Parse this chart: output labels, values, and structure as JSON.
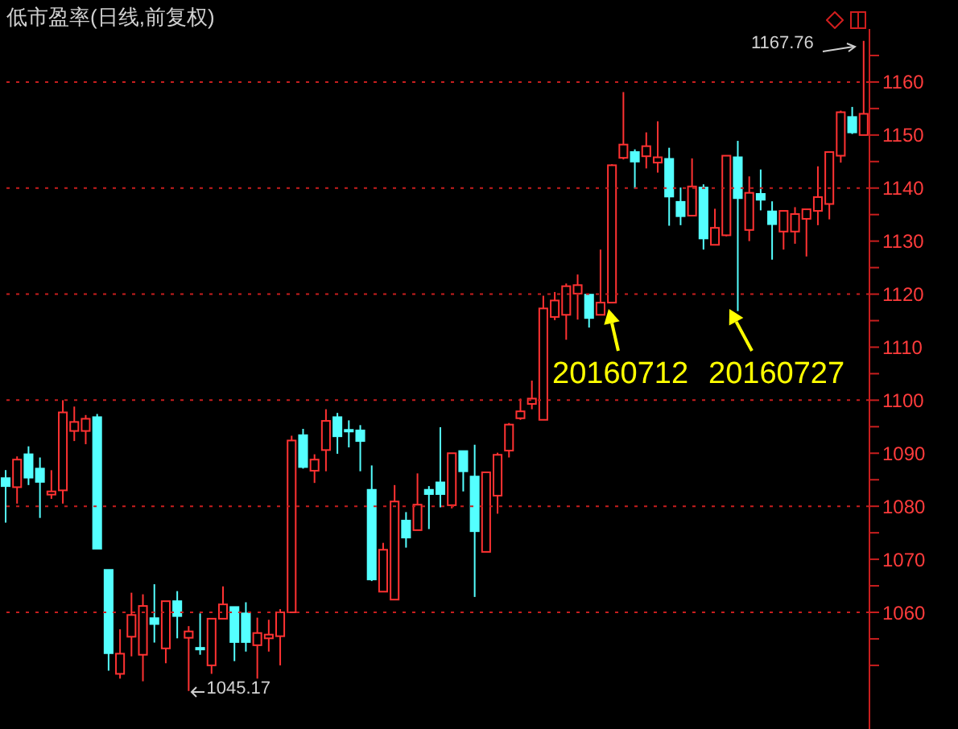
{
  "chart_data": {
    "type": "candlestick",
    "title": "低市盈率(日线,前复权)",
    "categories": [
      null,
      null,
      null,
      null,
      null,
      null,
      null,
      null,
      null,
      null,
      null,
      null,
      null,
      null,
      null,
      null,
      null,
      null,
      null,
      null,
      null,
      null,
      null,
      null,
      null,
      null,
      null,
      null,
      null,
      null,
      null,
      null,
      null,
      null,
      null,
      null,
      null,
      null,
      null,
      null,
      null,
      null,
      null,
      null,
      null,
      null,
      null,
      null,
      null,
      null,
      null,
      null,
      null,
      null,
      null,
      null,
      null,
      null,
      null,
      null,
      null,
      null,
      null,
      null,
      null,
      null,
      null,
      null,
      null,
      null,
      null,
      null,
      null,
      null,
      null,
      null
    ],
    "ohlc": [
      [
        1085.3,
        1086.8,
        1076.9,
        1083.8
      ],
      [
        1083.6,
        1089.4,
        1080.5,
        1088.8
      ],
      [
        1089.8,
        1091.3,
        1084.0,
        1085.4
      ],
      [
        1087.1,
        1089.2,
        1077.8,
        1084.6
      ],
      [
        1082.2,
        1086.8,
        1081.4,
        1082.8
      ],
      [
        1083.0,
        1100.0,
        1080.5,
        1097.7
      ],
      [
        1094.2,
        1098.8,
        1092.3,
        1095.9
      ],
      [
        1094.2,
        1097.2,
        1091.7,
        1096.5
      ],
      [
        1096.8,
        1097.4,
        1072.0,
        1072.0
      ],
      [
        1068.0,
        1068.0,
        1049.0,
        1052.3
      ],
      [
        1048.4,
        1056.8,
        1047.5,
        1052.2
      ],
      [
        1055.4,
        1063.7,
        1051.7,
        1059.5
      ],
      [
        1052.0,
        1063.4,
        1047.0,
        1061.2
      ],
      [
        1058.9,
        1065.3,
        1054.3,
        1057.8
      ],
      [
        1053.2,
        1062.1,
        1050.4,
        1062.1
      ],
      [
        1062.1,
        1064.0,
        1055.1,
        1059.3
      ],
      [
        1055.2,
        1057.4,
        1045.17,
        1056.4
      ],
      [
        1053.3,
        1059.8,
        1052.0,
        1053.0
      ],
      [
        1050.0,
        1058.8,
        1048.4,
        1058.8
      ],
      [
        1058.8,
        1064.9,
        1058.8,
        1061.5
      ],
      [
        1061.0,
        1061.0,
        1050.8,
        1054.4
      ],
      [
        1059.8,
        1061.9,
        1052.6,
        1054.4
      ],
      [
        1053.8,
        1059.0,
        1047.5,
        1056.1
      ],
      [
        1055.1,
        1058.6,
        1052.6,
        1055.8
      ],
      [
        1055.5,
        1060.6,
        1050.0,
        1060.0
      ],
      [
        1060.0,
        1093.3,
        1060.0,
        1092.4
      ],
      [
        1093.4,
        1094.6,
        1087.1,
        1087.4
      ],
      [
        1086.7,
        1089.8,
        1084.4,
        1088.8
      ],
      [
        1090.6,
        1098.3,
        1086.6,
        1096.1
      ],
      [
        1096.8,
        1097.6,
        1089.9,
        1093.2
      ],
      [
        1094.4,
        1096.2,
        1091.1,
        1094.2
      ],
      [
        1094.3,
        1095.3,
        1086.6,
        1092.3
      ],
      [
        1083.1,
        1087.7,
        1065.9,
        1066.2
      ],
      [
        1063.9,
        1073.1,
        1063.9,
        1071.8
      ],
      [
        1062.4,
        1084.0,
        1062.4,
        1080.9
      ],
      [
        1077.3,
        1078.9,
        1072.2,
        1074.1
      ],
      [
        1075.5,
        1086.2,
        1075.5,
        1080.3
      ],
      [
        1083.1,
        1083.8,
        1075.7,
        1082.3
      ],
      [
        1084.5,
        1094.9,
        1079.8,
        1082.3
      ],
      [
        1080.2,
        1090.0,
        1079.6,
        1090.0
      ],
      [
        1090.4,
        1090.4,
        1082.8,
        1086.6
      ],
      [
        1085.6,
        1091.6,
        1062.9,
        1075.3
      ],
      [
        1071.4,
        1086.4,
        1071.4,
        1086.4
      ],
      [
        1082.0,
        1090.1,
        1078.6,
        1089.7
      ],
      [
        1090.5,
        1095.7,
        1089.2,
        1095.4
      ],
      [
        1096.6,
        1100.3,
        1096.3,
        1097.9
      ],
      [
        1099.3,
        1103.7,
        1098.3,
        1100.3
      ],
      [
        1096.3,
        1119.7,
        1096.3,
        1117.3
      ],
      [
        1115.7,
        1120.4,
        1115.1,
        1118.8
      ],
      [
        1116.1,
        1122.0,
        1111.4,
        1121.5
      ],
      [
        1120.1,
        1123.7,
        1115.2,
        1121.7
      ],
      [
        1119.9,
        1119.9,
        1113.7,
        1115.5
      ],
      [
        1116.1,
        1128.4,
        1116.1,
        1118.4
      ],
      [
        1118.4,
        1144.5,
        1118.4,
        1144.3
      ],
      [
        1145.7,
        1158.1,
        1145.4,
        1148.2
      ],
      [
        1146.8,
        1147.3,
        1139.9,
        1145.0
      ],
      [
        1146.0,
        1150.5,
        1143.7,
        1147.9
      ],
      [
        1144.8,
        1152.6,
        1142.9,
        1145.8
      ],
      [
        1145.5,
        1147.6,
        1132.9,
        1138.4
      ],
      [
        1137.4,
        1140.1,
        1133.0,
        1134.7
      ],
      [
        1134.8,
        1145.6,
        1134.8,
        1140.3
      ],
      [
        1140.1,
        1140.7,
        1128.4,
        1130.5
      ],
      [
        1129.3,
        1136.1,
        1129.3,
        1132.5
      ],
      [
        1131.1,
        1146.1,
        1130.9,
        1146.1
      ],
      [
        1145.8,
        1148.9,
        1116.8,
        1138.1
      ],
      [
        1132.1,
        1142.2,
        1130.0,
        1139.1
      ],
      [
        1138.9,
        1143.5,
        1135.8,
        1137.8
      ],
      [
        1135.6,
        1137.5,
        1126.5,
        1133.2
      ],
      [
        1131.8,
        1135.7,
        1128.4,
        1135.7
      ],
      [
        1131.8,
        1136.4,
        1129.5,
        1135.1
      ],
      [
        1134.2,
        1136.0,
        1127.1,
        1136.0
      ],
      [
        1135.7,
        1144.1,
        1133.0,
        1138.3
      ],
      [
        1137.0,
        1146.8,
        1134.1,
        1146.8
      ],
      [
        1146.1,
        1154.6,
        1144.8,
        1154.3
      ],
      [
        1153.4,
        1155.3,
        1150.2,
        1150.5
      ],
      [
        1150.0,
        1167.76,
        1150.0,
        1154.0
      ]
    ],
    "colors": [
      "#54ffff",
      "#ff3232",
      "#54ffff",
      "#54ffff",
      "#ff3232",
      "#ff3232",
      "#ff3232",
      "#ff3232",
      "#54ffff",
      "#54ffff",
      "#ff3232",
      "#ff3232",
      "#ff3232",
      "#54ffff",
      "#ff3232",
      "#54ffff",
      "#ff3232",
      "#54ffff",
      "#ff3232",
      "#ff3232",
      "#54ffff",
      "#54ffff",
      "#ff3232",
      "#ff3232",
      "#ff3232",
      "#ff3232",
      "#54ffff",
      "#ff3232",
      "#ff3232",
      "#54ffff",
      "#54ffff",
      "#54ffff",
      "#54ffff",
      "#ff3232",
      "#ff3232",
      "#54ffff",
      "#ff3232",
      "#54ffff",
      "#54ffff",
      "#ff3232",
      "#54ffff",
      "#54ffff",
      "#ff3232",
      "#ff3232",
      "#ff3232",
      "#ff3232",
      "#ff3232",
      "#ff3232",
      "#ff3232",
      "#ff3232",
      "#ff3232",
      "#54ffff",
      "#ff3232",
      "#ff3232",
      "#ff3232",
      "#54ffff",
      "#ff3232",
      "#ff3232",
      "#54ffff",
      "#54ffff",
      "#ff3232",
      "#54ffff",
      "#ff3232",
      "#ff3232",
      "#54ffff",
      "#ff3232",
      "#54ffff",
      "#54ffff",
      "#ff3232",
      "#ff3232",
      "#ff3232",
      "#ff3232",
      "#ff3232",
      "#ff3232",
      "#54ffff",
      "#ff3232"
    ],
    "ylim": [
      1038,
      1170
    ],
    "yticks": [
      {
        "value": 1050,
        "label": null
      },
      {
        "value": 1055,
        "label": null
      },
      1060,
      {
        "value": 1065,
        "label": null
      },
      1070,
      {
        "value": 1075,
        "label": null
      },
      1080,
      {
        "value": 1085,
        "label": null
      },
      1090,
      {
        "value": 1095,
        "label": null
      },
      1100,
      {
        "value": 1105,
        "label": null
      },
      1110,
      {
        "value": 1115,
        "label": null
      },
      1120,
      {
        "value": 1125,
        "label": null
      },
      1130,
      {
        "value": 1135,
        "label": null
      },
      1140,
      {
        "value": 1145,
        "label": null
      },
      1150,
      {
        "value": 1155,
        "label": null
      },
      1160,
      {
        "value": 1165,
        "label": null
      }
    ],
    "ref_lines": [
      {
        "axis": "y",
        "value": 1060,
        "color": "#c81e1e",
        "line_style": "dotted"
      },
      {
        "axis": "y",
        "value": 1080,
        "color": "#c81e1e",
        "line_style": "dotted"
      },
      {
        "axis": "y",
        "value": 1100,
        "color": "#c81e1e",
        "line_style": "dotted"
      },
      {
        "axis": "y",
        "value": 1120,
        "color": "#c81e1e",
        "line_style": "dotted"
      },
      {
        "axis": "y",
        "value": 1140,
        "color": "#c81e1e",
        "line_style": "dotted"
      },
      {
        "axis": "y",
        "value": 1160,
        "color": "#c81e1e",
        "line_style": "dotted"
      }
    ],
    "annotations": [
      "1167.76",
      "1045.17",
      "20160712",
      "20160727"
    ]
  }
}
